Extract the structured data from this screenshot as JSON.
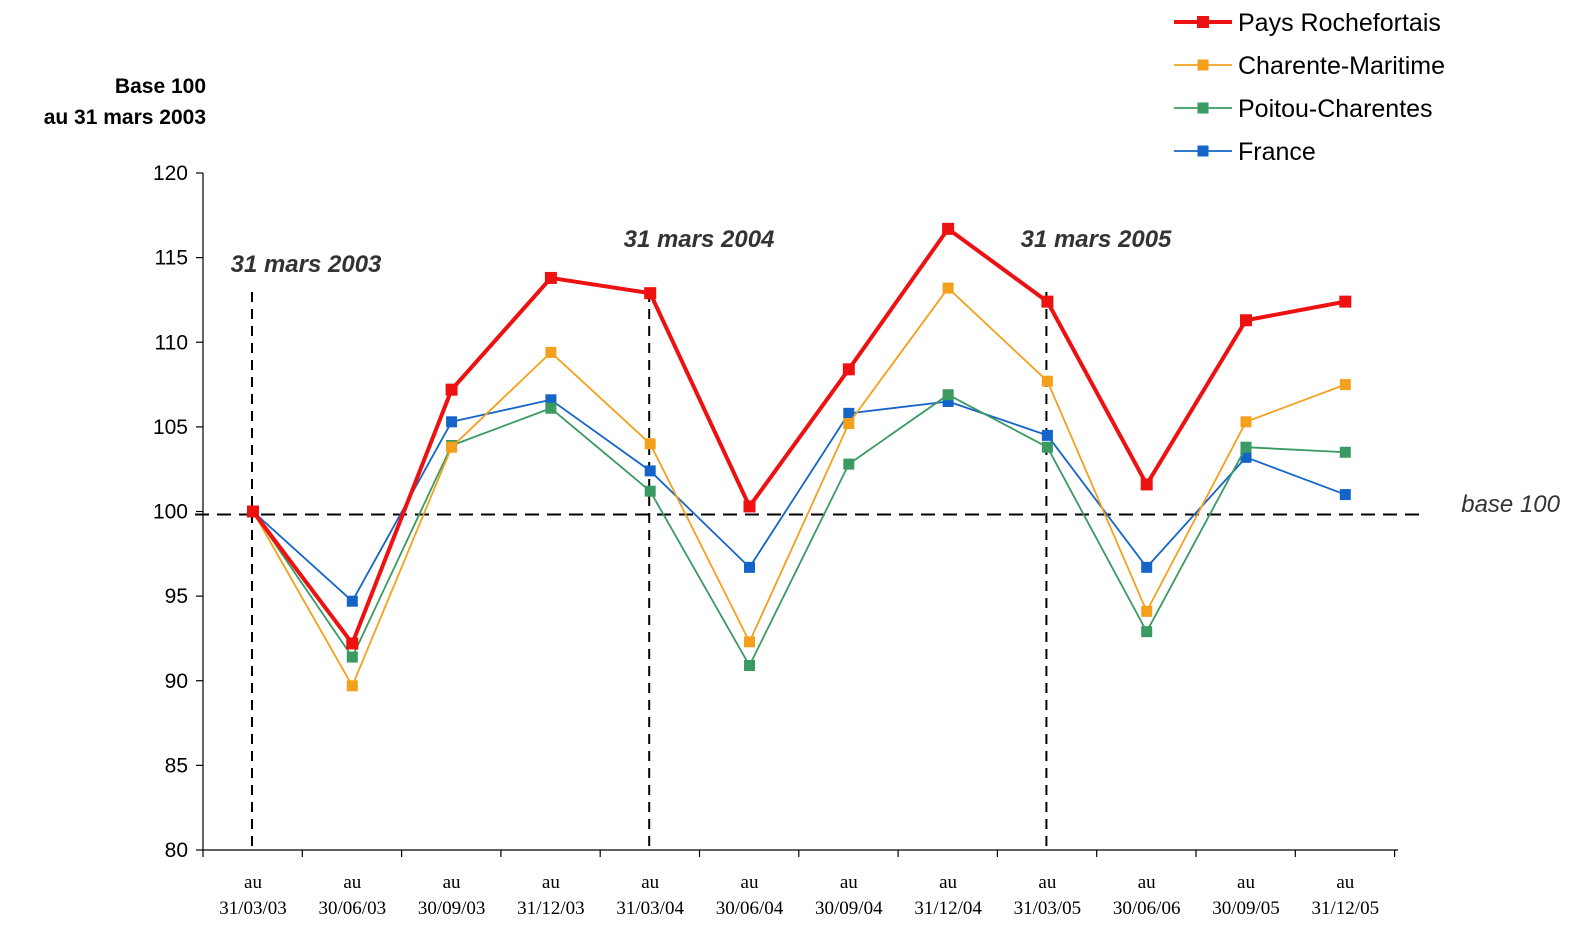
{
  "chart_data": {
    "type": "line",
    "ylabel": [
      "Base 100",
      "au 31 mars 2003"
    ],
    "ylim": [
      80,
      120
    ],
    "yticks": [
      80,
      85,
      90,
      95,
      100,
      105,
      110,
      115,
      120
    ],
    "categories": [
      [
        "au",
        "31/03/03"
      ],
      [
        "au",
        "30/06/03"
      ],
      [
        "au",
        "30/09/03"
      ],
      [
        "au",
        "31/12/03"
      ],
      [
        "au",
        "31/03/04"
      ],
      [
        "au",
        "30/06/04"
      ],
      [
        "au",
        "30/09/04"
      ],
      [
        "au",
        "31/12/04"
      ],
      [
        "au",
        "31/03/05"
      ],
      [
        "au",
        "30/06/06"
      ],
      [
        "au",
        "30/09/05"
      ],
      [
        "au",
        "31/12/05"
      ]
    ],
    "series": [
      {
        "name": "Pays Rochefortais",
        "color": "#ee1111",
        "thick": true,
        "values": [
          100,
          92.2,
          107.2,
          113.8,
          112.9,
          100.3,
          108.4,
          116.7,
          112.4,
          101.6,
          111.3,
          112.4
        ]
      },
      {
        "name": "Charente-Maritime",
        "color": "#f5a01c",
        "thick": false,
        "values": [
          100,
          89.7,
          103.8,
          109.4,
          104.0,
          92.3,
          105.2,
          113.2,
          107.7,
          94.1,
          105.3,
          107.5
        ]
      },
      {
        "name": "Poitou-Charentes",
        "color": "#3a9a62",
        "thick": false,
        "values": [
          100,
          91.4,
          103.9,
          106.1,
          101.2,
          90.9,
          102.8,
          106.9,
          103.8,
          92.9,
          103.8,
          103.5
        ]
      },
      {
        "name": "France",
        "color": "#1565c8",
        "thick": false,
        "values": [
          100,
          94.7,
          105.3,
          106.6,
          102.4,
          96.7,
          105.8,
          106.5,
          104.5,
          96.7,
          103.2,
          101.0
        ]
      }
    ],
    "annotations": [
      {
        "text": "31 mars 2003",
        "category_index": 0
      },
      {
        "text": "31 mars 2004",
        "category_index": 4
      },
      {
        "text": "31 mars 2005",
        "category_index": 8
      }
    ],
    "baseline": {
      "value": 100,
      "label": "base 100"
    },
    "legend_position": "top-right",
    "grid": false
  }
}
